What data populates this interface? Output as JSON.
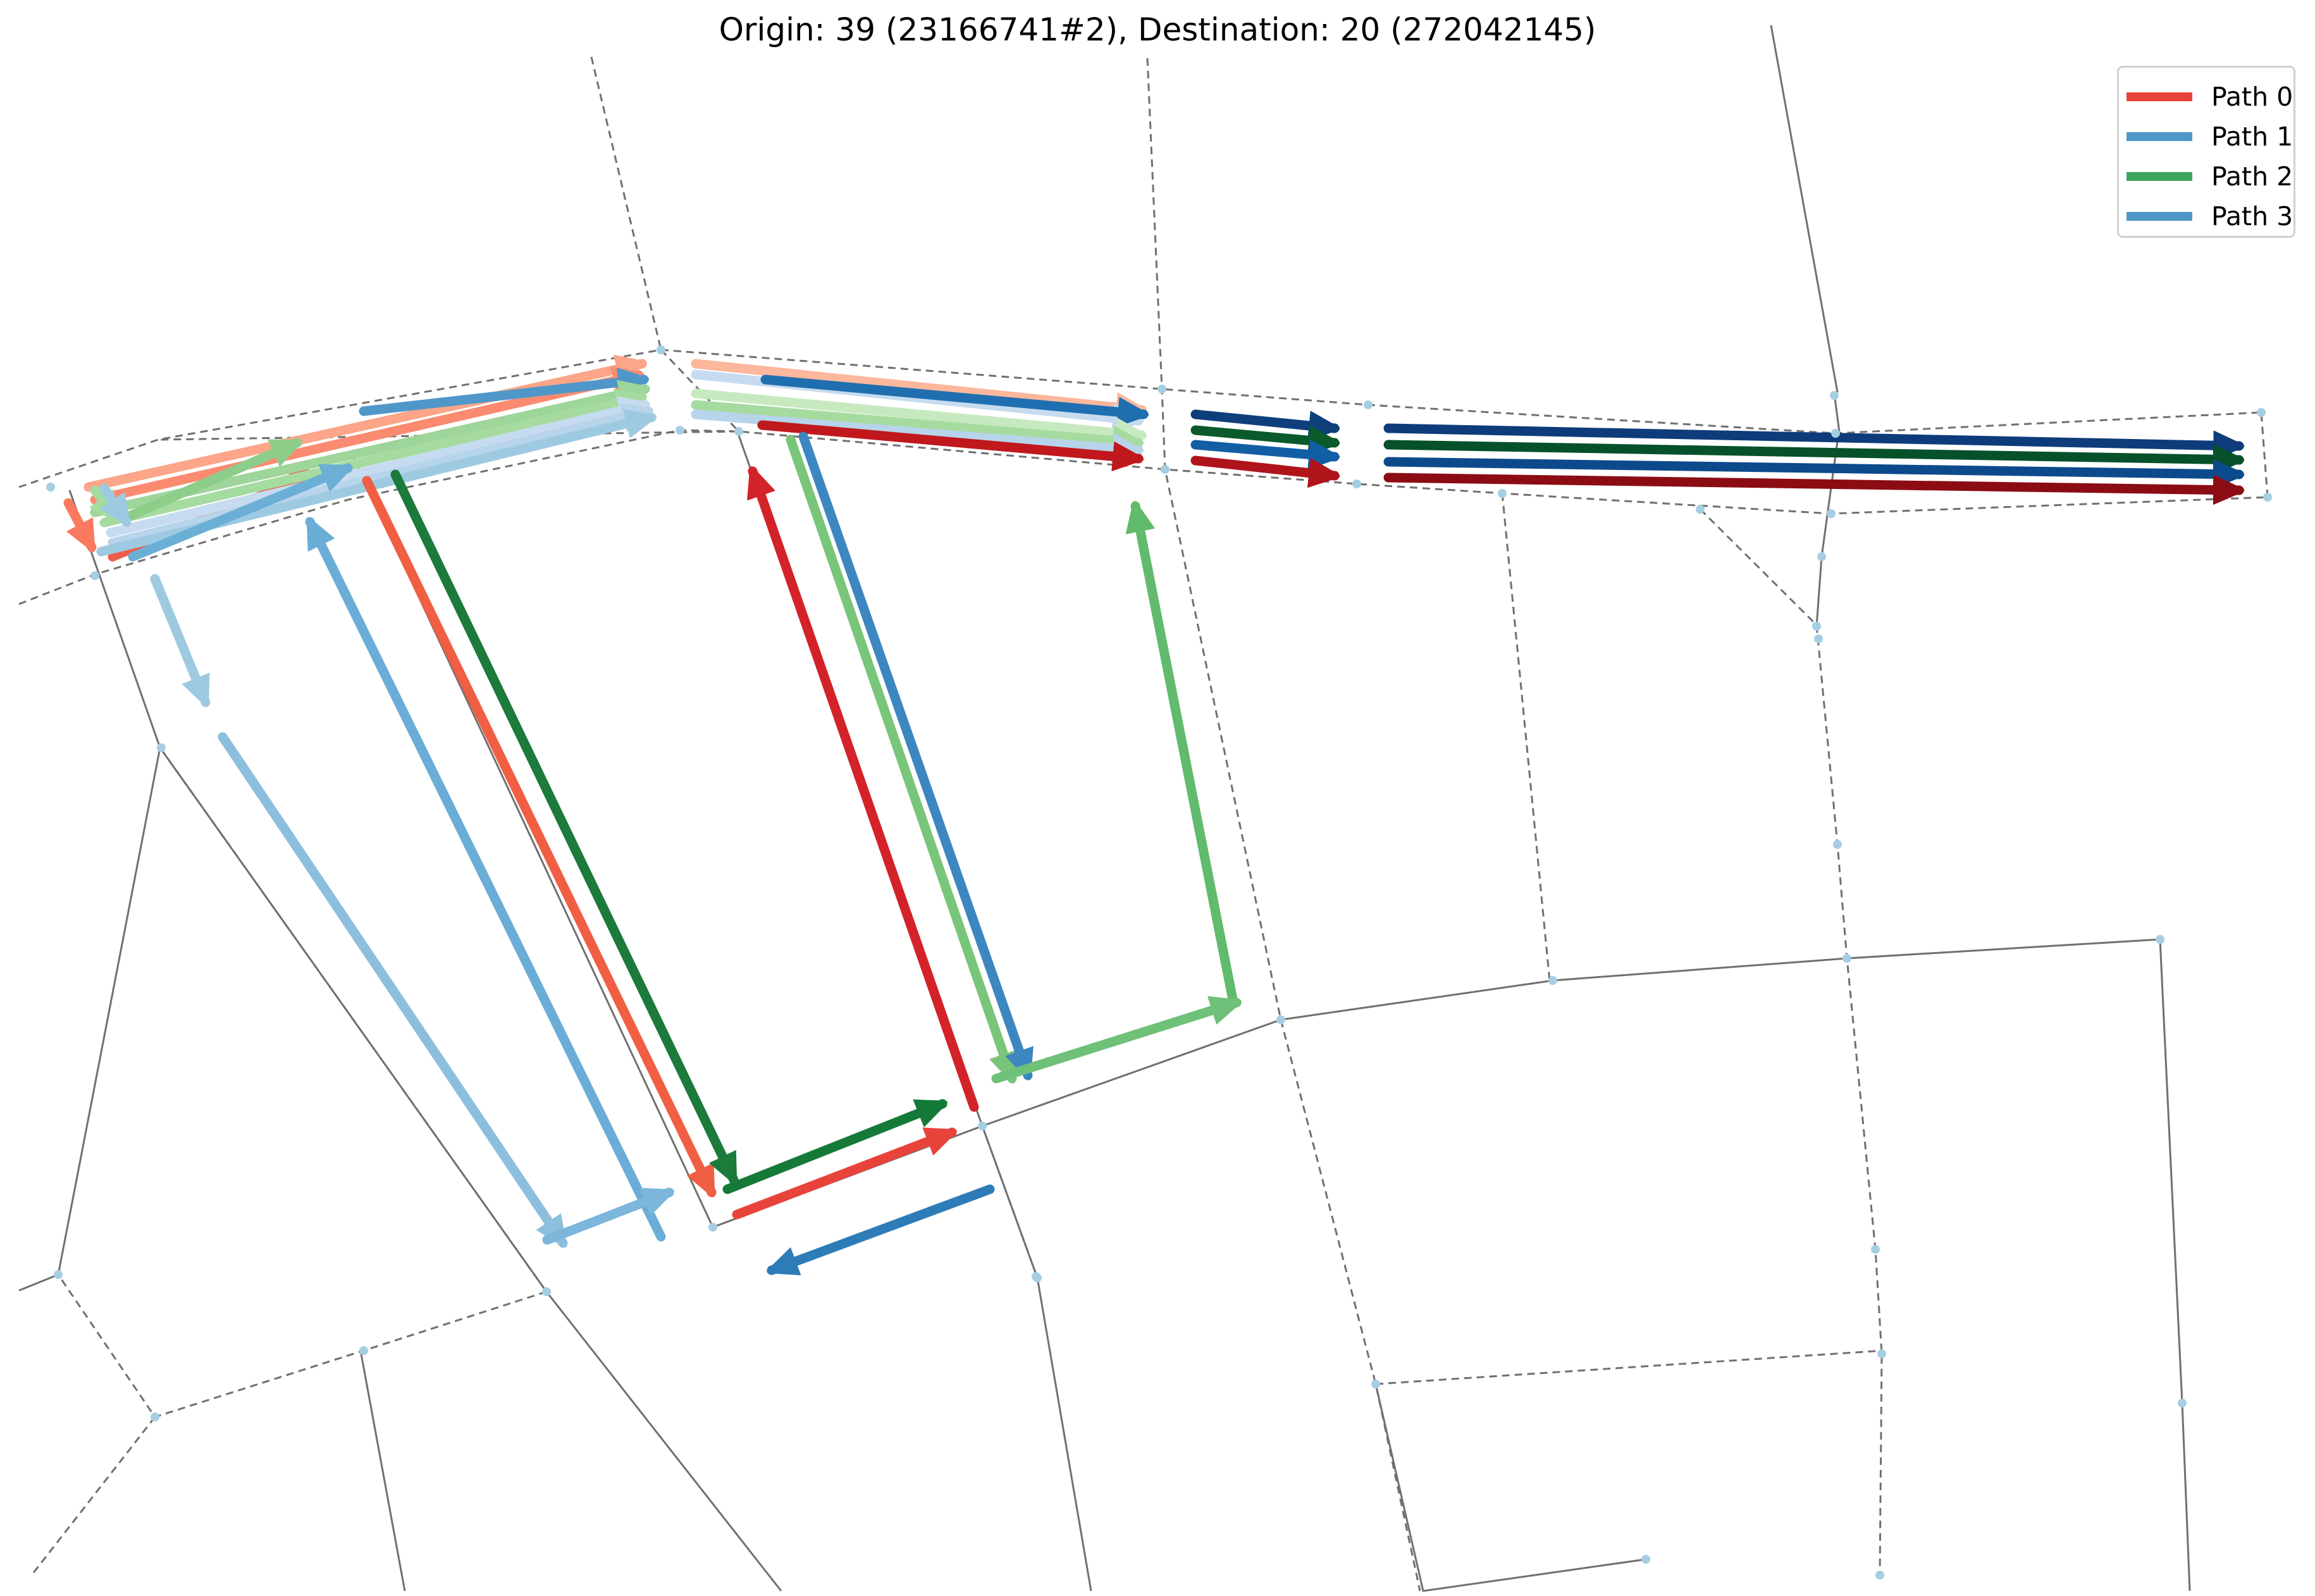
{
  "title": "Origin: 39 (23166741#2), Destination: 20 (272042145)",
  "legend": {
    "items": [
      {
        "label": "Path 0",
        "color": "#e8433a"
      },
      {
        "label": "Path 1",
        "color": "#4f97c9"
      },
      {
        "label": "Path 2",
        "color": "#3ea65c"
      },
      {
        "label": "Path 3",
        "color": "#4f97c9"
      }
    ]
  },
  "colors": {
    "road_line": "#707070",
    "node": "#a6cee3"
  }
}
